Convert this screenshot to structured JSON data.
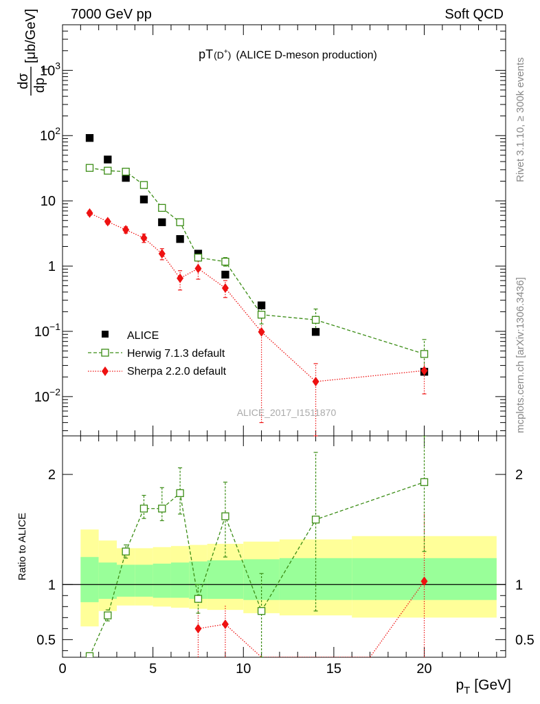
{
  "header": {
    "left": "7000 GeV pp",
    "right": "Soft QCD"
  },
  "side": {
    "rivet": "Rivet 3.1.10, ≥ 300k events",
    "mcplots": "mcplots.cern.ch [arXiv:1306.3436]"
  },
  "watermark": "ALICE_2017_I1511870",
  "colors": {
    "alice": "#000000",
    "herwig": "#3a8c14",
    "sherpa": "#ee1111",
    "band_inner": "#99ff99",
    "band_outer": "#ffff99"
  },
  "chart_data": [
    {
      "type": "scatter",
      "title_main": "pT",
      "title_sub": "(D",
      "title_sup": "+",
      "title_close": ")",
      "title_rest": "(ALICE D-meson production)",
      "ylabel_num": "dσ",
      "ylabel_den": "dp",
      "ylabel_den_sub": "T",
      "ylabel_unit": "[μb/GeV]",
      "yscale": "log",
      "xlim": [
        0,
        24.5
      ],
      "ylim": [
        0.0025,
        5000
      ],
      "ytick_labels": [
        {
          "base": "10",
          "exp": "3"
        },
        {
          "base": "10",
          "exp": "2"
        },
        {
          "base": "10",
          "exp": ""
        },
        {
          "base": "1",
          "exp": ""
        },
        {
          "base": "10",
          "exp": "−1"
        },
        {
          "base": "10",
          "exp": "−2"
        }
      ],
      "legend": {
        "position": "bottom-left",
        "alice": "ALICE",
        "herwig": "Herwig 7.1.3 default",
        "sherpa": "Sherpa 2.2.0 default"
      },
      "alice": {
        "x": [
          1.5,
          2.5,
          3.5,
          4.5,
          5.5,
          6.5,
          7.5,
          9,
          11,
          14,
          20
        ],
        "y": [
          92,
          43,
          22.5,
          10.5,
          4.7,
          2.6,
          1.55,
          0.74,
          0.25,
          0.098,
          0.024
        ]
      },
      "herwig": {
        "x": [
          1.5,
          2.5,
          3.5,
          4.5,
          5.5,
          6.5,
          7.5,
          9,
          11,
          14,
          20
        ],
        "y": [
          32,
          29,
          28,
          17.5,
          7.8,
          4.7,
          1.35,
          1.17,
          0.18,
          0.15,
          0.045
        ],
        "err_lo": [
          30,
          27,
          26,
          16,
          7.3,
          4.3,
          1.2,
          1.0,
          0.13,
          0.1,
          0.025
        ],
        "err_hi": [
          34,
          31,
          30,
          19,
          8.3,
          5.2,
          1.5,
          1.35,
          0.23,
          0.22,
          0.075
        ]
      },
      "sherpa": {
        "x": [
          1.5,
          2.5,
          3.5,
          4.5,
          5.5,
          6.5,
          7.5,
          9,
          11,
          14,
          20
        ],
        "y": [
          6.5,
          4.8,
          3.6,
          2.7,
          1.55,
          0.65,
          0.92,
          0.46,
          0.098,
          0.017,
          0.025
        ],
        "err_lo": [
          6.0,
          4.4,
          3.2,
          2.3,
          1.25,
          0.43,
          0.63,
          0.33,
          0.004,
          0.002,
          0.011
        ],
        "err_hi": [
          7.0,
          5.2,
          4.0,
          3.1,
          1.85,
          0.85,
          1.2,
          0.6,
          0.19,
          0.032,
          0.04
        ]
      }
    },
    {
      "type": "scatter",
      "ylabel": "Ratio to ALICE",
      "xlabel_main": "p",
      "xlabel_sub": "T",
      "xlabel_unit": "[GeV]",
      "xlim": [
        0,
        24.5
      ],
      "ylim": [
        0.34,
        2.35
      ],
      "xticks": [
        0,
        5,
        10,
        15,
        20
      ],
      "xtick_labels": [
        "0",
        "5",
        "10",
        "15",
        "20"
      ],
      "yticks": [
        0.5,
        1,
        2
      ],
      "ytick_labels": [
        "0.5",
        "1",
        "2"
      ],
      "band_edges": [
        1,
        2,
        3,
        4,
        5,
        6,
        7,
        8,
        10,
        12,
        16,
        24
      ],
      "band_inner": {
        "lo": [
          0.84,
          0.87,
          0.89,
          0.89,
          0.88,
          0.88,
          0.87,
          0.87,
          0.86,
          0.86,
          0.86
        ],
        "hi": [
          1.25,
          1.2,
          1.18,
          1.18,
          1.19,
          1.2,
          1.21,
          1.22,
          1.23,
          1.24,
          1.24
        ]
      },
      "band_outer": {
        "lo": [
          0.62,
          0.76,
          0.81,
          0.81,
          0.8,
          0.79,
          0.78,
          0.77,
          0.74,
          0.72,
          0.7
        ],
        "hi": [
          1.5,
          1.4,
          1.33,
          1.33,
          1.34,
          1.35,
          1.36,
          1.37,
          1.39,
          1.41,
          1.44
        ]
      },
      "herwig": {
        "x": [
          1.5,
          2.5,
          3.5,
          4.5,
          5.5,
          6.5,
          7.5,
          9,
          11,
          14,
          20
        ],
        "y": [
          0.35,
          0.72,
          1.3,
          1.69,
          1.69,
          1.83,
          0.87,
          1.62,
          0.76,
          1.59,
          1.93
        ],
        "err_lo": [
          0.35,
          0.67,
          1.24,
          1.6,
          1.58,
          1.64,
          0.74,
          1.25,
          0.34,
          0.76,
          1.3
        ],
        "err_hi": [
          0.35,
          0.77,
          1.36,
          1.81,
          1.88,
          2.06,
          1.0,
          1.93,
          1.1,
          2.2,
          2.35
        ]
      },
      "sherpa": {
        "x": [
          7.5,
          9,
          11,
          17,
          20
        ],
        "y": [
          0.6,
          0.64,
          0.34,
          0.34,
          1.03
        ],
        "err_lo": [
          0.34,
          0.34,
          0.34,
          0.34,
          0.34
        ],
        "err_hi": [
          0.77,
          0.82,
          0.34,
          0.34,
          1.67
        ]
      }
    }
  ]
}
